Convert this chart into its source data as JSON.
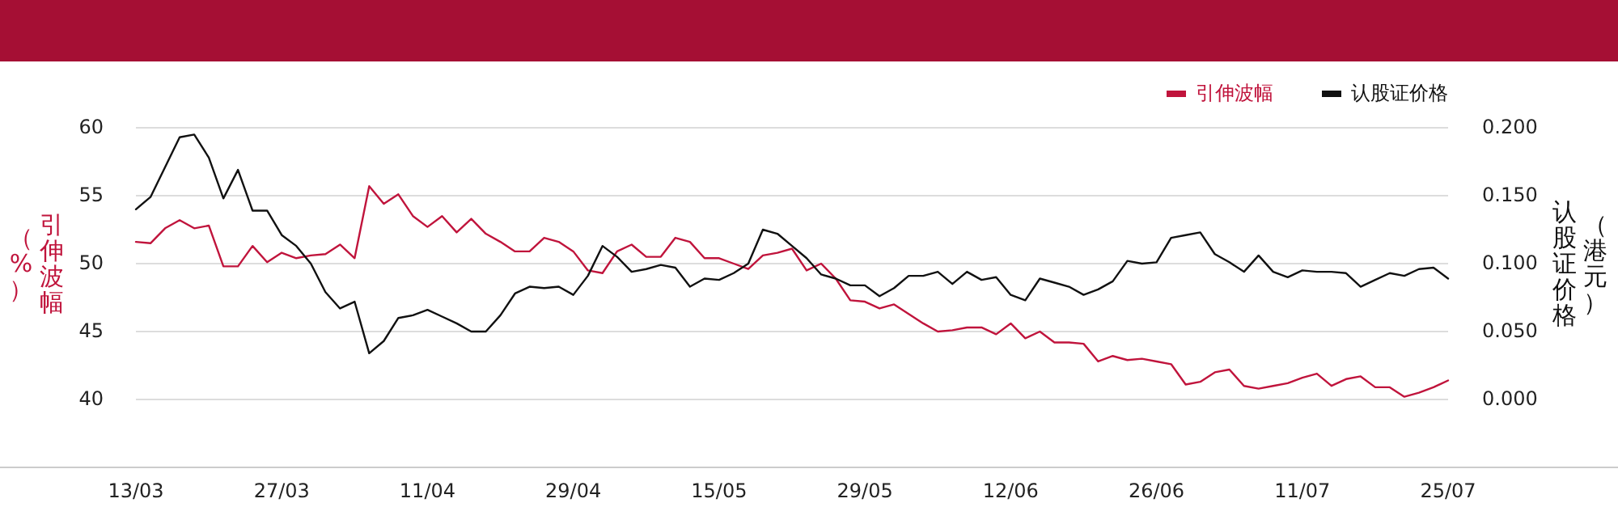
{
  "chart_data": {
    "type": "line",
    "categories": [
      "13/03",
      null,
      null,
      null,
      null,
      null,
      null,
      null,
      null,
      null,
      "27/03",
      null,
      null,
      null,
      null,
      null,
      null,
      null,
      null,
      null,
      "11/04",
      null,
      null,
      null,
      null,
      null,
      null,
      null,
      null,
      null,
      "29/04",
      null,
      null,
      null,
      null,
      null,
      null,
      null,
      null,
      null,
      "15/05",
      null,
      null,
      null,
      null,
      null,
      null,
      null,
      null,
      null,
      "29/05",
      null,
      null,
      null,
      null,
      null,
      null,
      null,
      null,
      null,
      "12/06",
      null,
      null,
      null,
      null,
      null,
      null,
      null,
      null,
      null,
      "26/06",
      null,
      null,
      null,
      null,
      null,
      null,
      null,
      null,
      null,
      "11/07",
      null,
      null,
      null,
      null,
      null,
      null,
      null,
      null,
      null,
      "25/07"
    ],
    "ylabel": "引伸波幅（%）",
    "y2label": "认股证价格（港元）",
    "ylim": [
      35,
      60
    ],
    "yticks": [
      40,
      45,
      50,
      55,
      60
    ],
    "y2lim": [
      -0.05,
      0.2
    ],
    "y2ticks": [
      {
        "value": 0,
        "label": "0.000"
      },
      {
        "value": 0.05,
        "label": "0.050"
      },
      {
        "value": 0.1,
        "label": "0.100"
      },
      {
        "value": 0.15,
        "label": "0.150"
      },
      {
        "value": 0.2,
        "label": "0.200"
      }
    ],
    "grid": "y",
    "legend": "top right",
    "series": [
      {
        "name": "引伸波幅",
        "color": "#c0143c",
        "values": [
          51.6,
          51.5,
          52.6,
          53.2,
          52.6,
          52.8,
          49.8,
          49.8,
          51.3,
          50.1,
          50.8,
          50.4,
          50.6,
          50.7,
          51.4,
          50.4,
          55.7,
          54.4,
          55.1,
          53.5,
          52.7,
          53.5,
          52.3,
          53.3,
          52.2,
          51.6,
          50.9,
          50.9,
          51.9,
          51.6,
          50.9,
          49.5,
          49.3,
          50.9,
          51.4,
          50.5,
          50.5,
          51.9,
          51.6,
          50.4,
          50.4,
          50.0,
          49.6,
          50.6,
          50.8,
          51.1,
          49.5,
          50.0,
          48.9,
          47.3,
          47.2,
          46.7,
          47.0,
          46.3,
          45.6,
          45.0,
          45.1,
          45.3,
          45.3,
          44.8,
          45.6,
          44.5,
          45.0,
          44.2,
          44.2,
          44.1,
          42.8,
          43.2,
          42.9,
          43.0,
          42.8,
          42.6,
          41.1,
          41.3,
          42.0,
          42.2,
          41.0,
          40.8,
          41.0,
          41.2,
          41.6,
          41.9,
          41.0,
          41.5,
          41.7,
          40.9,
          40.9,
          40.2,
          40.5,
          40.9,
          41.4
        ]
      },
      {
        "name": "认股证价格",
        "color": "#111111",
        "axis": "y2",
        "values": [
          0.14,
          0.149,
          0.171,
          0.193,
          0.195,
          0.178,
          0.148,
          0.169,
          0.139,
          0.139,
          0.121,
          0.113,
          0.1,
          0.079,
          0.067,
          0.072,
          0.034,
          0.043,
          0.06,
          0.062,
          0.066,
          0.061,
          0.056,
          0.05,
          0.05,
          0.062,
          0.078,
          0.083,
          0.082,
          0.083,
          0.077,
          0.091,
          0.113,
          0.105,
          0.094,
          0.096,
          0.099,
          0.097,
          0.083,
          0.089,
          0.088,
          0.093,
          0.1,
          0.125,
          0.122,
          0.113,
          0.104,
          0.092,
          0.089,
          0.084,
          0.084,
          0.076,
          0.082,
          0.091,
          0.091,
          0.094,
          0.085,
          0.094,
          0.088,
          0.09,
          0.077,
          0.073,
          0.089,
          0.086,
          0.083,
          0.077,
          0.081,
          0.087,
          0.102,
          0.1,
          0.101,
          0.119,
          0.121,
          0.123,
          0.107,
          0.101,
          0.094,
          0.106,
          0.094,
          0.09,
          0.095,
          0.094,
          0.094,
          0.093,
          0.083,
          0.088,
          0.093,
          0.091,
          0.096,
          0.097,
          0.089
        ]
      }
    ]
  }
}
